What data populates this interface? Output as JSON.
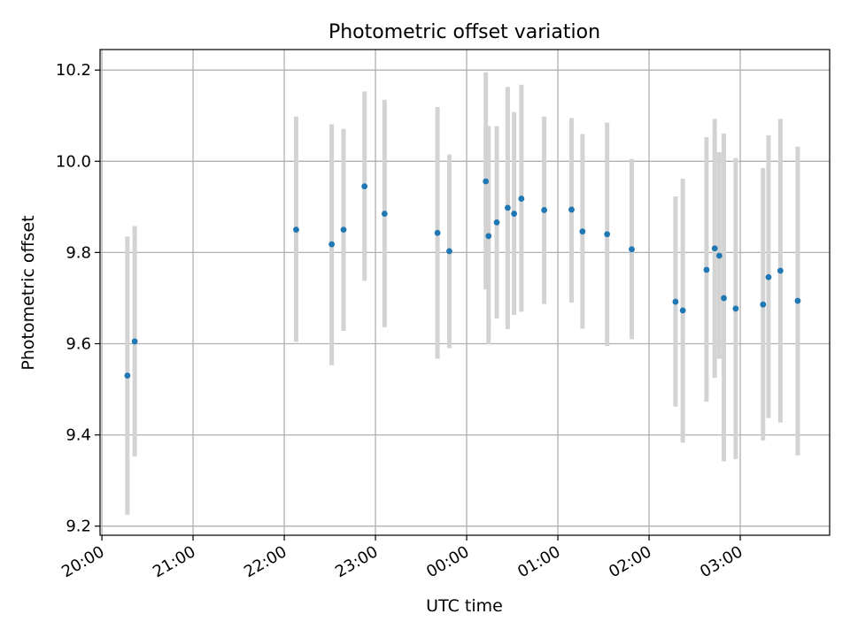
{
  "chart_data": {
    "type": "scatter",
    "title": "Photometric offset variation",
    "xlabel": "UTC time",
    "ylabel": "Photometric offset",
    "grid": true,
    "legend": "none",
    "colors": {
      "point": "#1f77b4",
      "errorbar": "#d3d3d3",
      "grid": "#b0b0b0",
      "axis": "#000000"
    },
    "x_unit": "hours since 20:00 UTC (day rolls past midnight)",
    "xlim": [
      -0.02,
      7.98
    ],
    "ylim": [
      9.18,
      10.245
    ],
    "xticks": [
      {
        "value": 0,
        "label": "20:00"
      },
      {
        "value": 1,
        "label": "21:00"
      },
      {
        "value": 2,
        "label": "22:00"
      },
      {
        "value": 3,
        "label": "23:00"
      },
      {
        "value": 4,
        "label": "00:00"
      },
      {
        "value": 5,
        "label": "01:00"
      },
      {
        "value": 6,
        "label": "02:00"
      },
      {
        "value": 7,
        "label": "03:00"
      }
    ],
    "yticks": [
      {
        "value": 9.2,
        "label": "9.2"
      },
      {
        "value": 9.4,
        "label": "9.4"
      },
      {
        "value": 9.6,
        "label": "9.6"
      },
      {
        "value": 9.8,
        "label": "9.8"
      },
      {
        "value": 10.0,
        "label": "10.0"
      },
      {
        "value": 10.2,
        "label": "10.2"
      }
    ],
    "points": [
      {
        "x": 0.28,
        "y": 9.53,
        "lo": 9.225,
        "hi": 9.835
      },
      {
        "x": 0.36,
        "y": 9.605,
        "lo": 9.353,
        "hi": 9.858
      },
      {
        "x": 2.13,
        "y": 9.85,
        "lo": 9.604,
        "hi": 10.098
      },
      {
        "x": 2.52,
        "y": 9.818,
        "lo": 9.553,
        "hi": 10.081
      },
      {
        "x": 2.65,
        "y": 9.85,
        "lo": 9.628,
        "hi": 10.071
      },
      {
        "x": 2.88,
        "y": 9.945,
        "lo": 9.738,
        "hi": 10.153
      },
      {
        "x": 3.1,
        "y": 9.885,
        "lo": 9.636,
        "hi": 10.135
      },
      {
        "x": 3.68,
        "y": 9.843,
        "lo": 9.567,
        "hi": 10.119
      },
      {
        "x": 3.81,
        "y": 9.803,
        "lo": 9.59,
        "hi": 10.015
      },
      {
        "x": 4.21,
        "y": 9.956,
        "lo": 9.719,
        "hi": 10.195
      },
      {
        "x": 4.24,
        "y": 9.836,
        "lo": 9.598,
        "hi": 10.077
      },
      {
        "x": 4.33,
        "y": 9.866,
        "lo": 9.655,
        "hi": 10.077
      },
      {
        "x": 4.45,
        "y": 9.898,
        "lo": 9.632,
        "hi": 10.163
      },
      {
        "x": 4.52,
        "y": 9.885,
        "lo": 9.663,
        "hi": 10.108
      },
      {
        "x": 4.6,
        "y": 9.918,
        "lo": 9.67,
        "hi": 10.168
      },
      {
        "x": 4.85,
        "y": 9.893,
        "lo": 9.687,
        "hi": 10.098
      },
      {
        "x": 5.15,
        "y": 9.894,
        "lo": 9.69,
        "hi": 10.095
      },
      {
        "x": 5.27,
        "y": 9.846,
        "lo": 9.633,
        "hi": 10.06
      },
      {
        "x": 5.54,
        "y": 9.84,
        "lo": 9.595,
        "hi": 10.085
      },
      {
        "x": 5.81,
        "y": 9.807,
        "lo": 9.61,
        "hi": 10.005
      },
      {
        "x": 6.29,
        "y": 9.692,
        "lo": 9.462,
        "hi": 9.923
      },
      {
        "x": 6.37,
        "y": 9.673,
        "lo": 9.383,
        "hi": 9.962
      },
      {
        "x": 6.63,
        "y": 9.762,
        "lo": 9.473,
        "hi": 10.053
      },
      {
        "x": 6.72,
        "y": 9.809,
        "lo": 9.525,
        "hi": 10.093
      },
      {
        "x": 6.77,
        "y": 9.793,
        "lo": 9.567,
        "hi": 10.02
      },
      {
        "x": 6.82,
        "y": 9.7,
        "lo": 9.342,
        "hi": 10.061
      },
      {
        "x": 6.95,
        "y": 9.677,
        "lo": 9.347,
        "hi": 10.007
      },
      {
        "x": 7.25,
        "y": 9.686,
        "lo": 9.388,
        "hi": 9.985
      },
      {
        "x": 7.31,
        "y": 9.746,
        "lo": 9.437,
        "hi": 10.057
      },
      {
        "x": 7.44,
        "y": 9.76,
        "lo": 9.427,
        "hi": 10.093
      },
      {
        "x": 7.63,
        "y": 9.694,
        "lo": 9.355,
        "hi": 10.032
      }
    ]
  }
}
